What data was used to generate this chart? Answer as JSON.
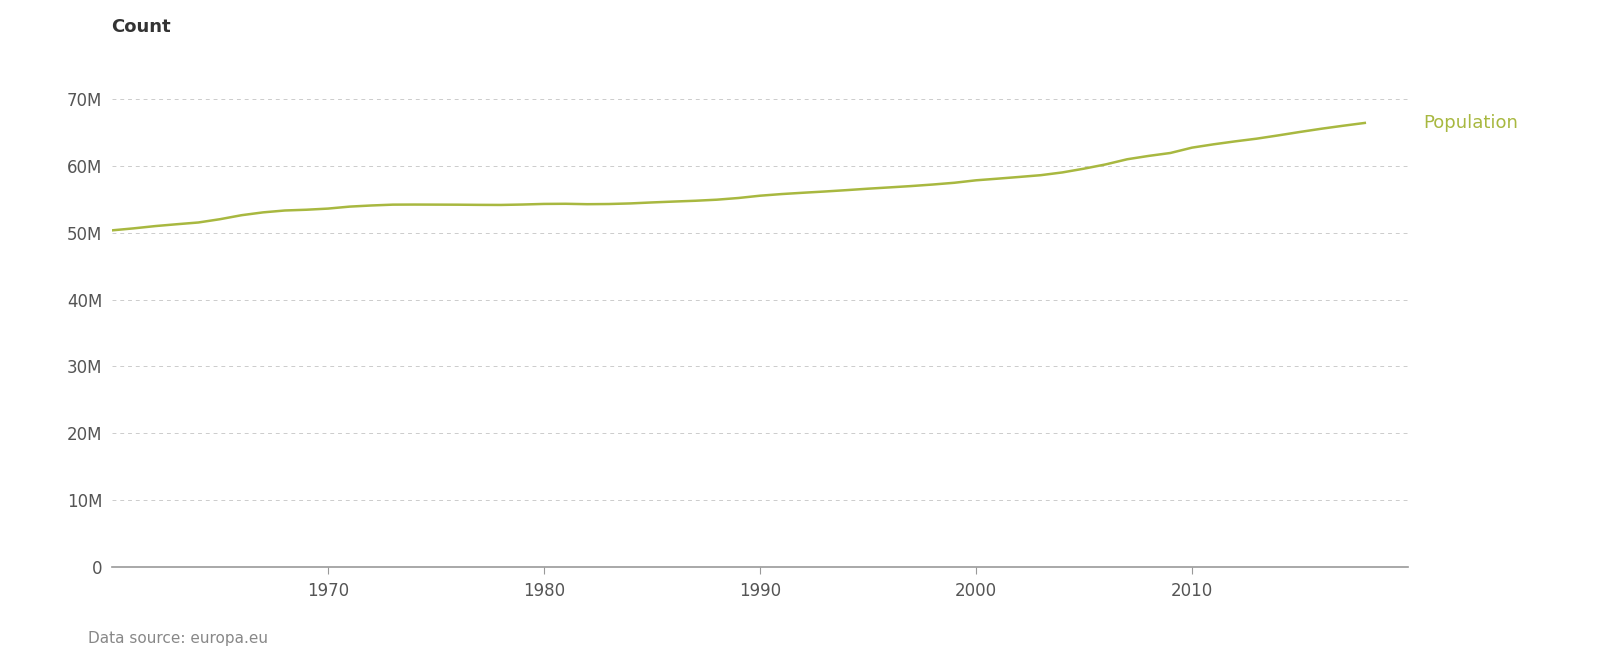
{
  "years": [
    1960,
    1961,
    1962,
    1963,
    1964,
    1965,
    1966,
    1967,
    1968,
    1969,
    1970,
    1971,
    1972,
    1973,
    1974,
    1975,
    1976,
    1977,
    1978,
    1979,
    1980,
    1981,
    1982,
    1983,
    1984,
    1985,
    1986,
    1987,
    1988,
    1989,
    1990,
    1991,
    1992,
    1993,
    1994,
    1995,
    1996,
    1997,
    1998,
    1999,
    2000,
    2001,
    2002,
    2003,
    2004,
    2005,
    2006,
    2007,
    2008,
    2009,
    2010,
    2011,
    2012,
    2013,
    2014,
    2015,
    2016,
    2017,
    2018
  ],
  "population": [
    50372000,
    50671000,
    51012000,
    51290000,
    51552000,
    52044000,
    52643000,
    53068000,
    53347000,
    53461000,
    53632000,
    53928000,
    54097000,
    54223000,
    54236000,
    54226000,
    54216000,
    54190000,
    54178000,
    54240000,
    54330000,
    54352000,
    54291000,
    54318000,
    54406000,
    54554000,
    54684000,
    54804000,
    54965000,
    55218000,
    55561000,
    55808000,
    56006000,
    56191000,
    56395000,
    56612000,
    56807000,
    57006000,
    57237000,
    57500000,
    57867000,
    58113000,
    58370000,
    58636000,
    59048000,
    59613000,
    60246000,
    61019000,
    61524000,
    61960000,
    62759000,
    63258000,
    63700000,
    64106000,
    64597000,
    65110000,
    65596000,
    66040000,
    66460000
  ],
  "line_color": "#a8b840",
  "ylabel": "Count",
  "legend_label": "Population",
  "legend_color": "#a8b840",
  "footnote": "Data source: europa.eu",
  "yticks": [
    0,
    10000000,
    20000000,
    30000000,
    40000000,
    50000000,
    60000000,
    70000000
  ],
  "ytick_labels": [
    "0",
    "10M",
    "20M",
    "30M",
    "40M",
    "50M",
    "60M",
    "70M"
  ],
  "xticks": [
    1970,
    1980,
    1990,
    2000,
    2010
  ],
  "ylim": [
    0,
    75000000
  ],
  "xlim": [
    1960,
    2020
  ],
  "background_color": "#ffffff",
  "grid_color": "#cccccc",
  "axis_color": "#999999",
  "tick_color": "#555555",
  "ylabel_color": "#333333",
  "footnote_color": "#888888",
  "ylabel_fontsize": 13,
  "tick_fontsize": 12,
  "legend_fontsize": 13,
  "footnote_fontsize": 11,
  "line_width": 1.8
}
